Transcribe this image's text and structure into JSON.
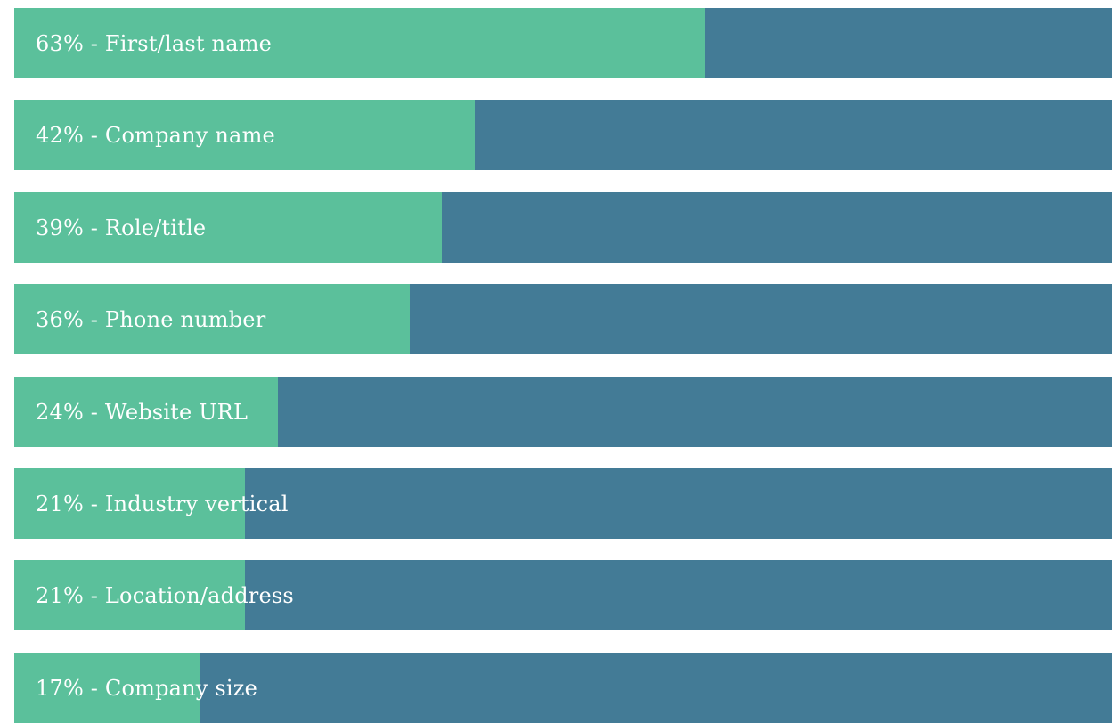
{
  "chart_data": {
    "type": "bar",
    "orientation": "horizontal",
    "xlim": [
      0,
      100
    ],
    "colors": {
      "fill": "#5bc09b",
      "track": "#437b96"
    },
    "categories": [
      "First/last name",
      "Company name",
      "Role/title",
      "Phone number",
      "Website URL",
      "Industry vertical",
      "Location/address",
      "Company size"
    ],
    "values": [
      63,
      42,
      39,
      36,
      24,
      21,
      21,
      17
    ],
    "data_labels": [
      "63% - First/last name",
      "42% - Company name",
      "39% - Role/title",
      "36% - Phone number",
      "24% - Website URL",
      "21% - Industry vertical",
      "21% - Location/address",
      "17% - Company size"
    ]
  }
}
